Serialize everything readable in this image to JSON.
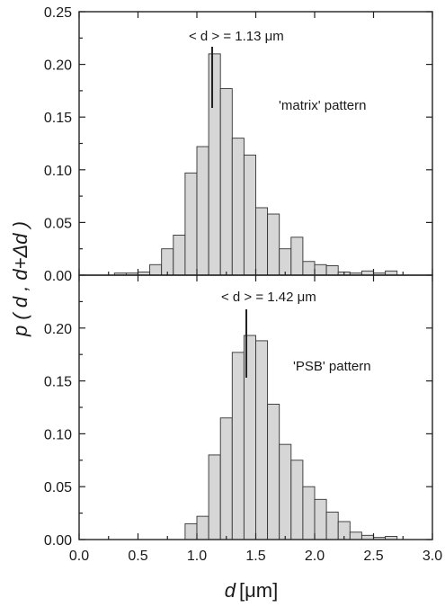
{
  "chart_data": [
    {
      "type": "bar",
      "panel": "top",
      "annotation_mean": "< d > =  1.13 μm",
      "annotation_label": "'matrix' pattern",
      "mean_value": 1.13,
      "bin_width": 0.1,
      "bin_centers": [
        0.35,
        0.45,
        0.55,
        0.65,
        0.75,
        0.85,
        0.95,
        1.05,
        1.15,
        1.25,
        1.35,
        1.45,
        1.55,
        1.65,
        1.75,
        1.85,
        1.95,
        2.05,
        2.15,
        2.25,
        2.35,
        2.45,
        2.55,
        2.65
      ],
      "values": [
        0.002,
        0.002,
        0.003,
        0.01,
        0.025,
        0.038,
        0.097,
        0.122,
        0.21,
        0.177,
        0.13,
        0.114,
        0.064,
        0.058,
        0.025,
        0.036,
        0.013,
        0.01,
        0.009,
        0.003,
        0.002,
        0.004,
        0.002,
        0.004
      ],
      "xlim": [
        0.0,
        3.0
      ],
      "ylim": [
        0.0,
        0.25
      ],
      "yticks": [
        "0.00",
        "0.05",
        "0.10",
        "0.15",
        "0.20",
        "0.25"
      ]
    },
    {
      "type": "bar",
      "panel": "bottom",
      "annotation_mean": "< d > =  1.42 μm",
      "annotation_label": "'PSB' pattern",
      "mean_value": 1.42,
      "bin_width": 0.1,
      "bin_centers": [
        0.95,
        1.05,
        1.15,
        1.25,
        1.35,
        1.45,
        1.55,
        1.65,
        1.75,
        1.85,
        1.95,
        2.05,
        2.15,
        2.25,
        2.35,
        2.45,
        2.55,
        2.65
      ],
      "values": [
        0.015,
        0.022,
        0.08,
        0.115,
        0.177,
        0.193,
        0.188,
        0.128,
        0.09,
        0.075,
        0.05,
        0.038,
        0.026,
        0.017,
        0.007,
        0.004,
        0.002,
        0.003
      ],
      "xlim": [
        0.0,
        3.0
      ],
      "ylim": [
        0.0,
        0.25
      ],
      "yticks": [
        "0.00",
        "0.05",
        "0.10",
        "0.15",
        "0.20"
      ]
    }
  ],
  "axes": {
    "xticks": [
      "0.0",
      "0.5",
      "1.0",
      "1.5",
      "2.0",
      "2.5",
      "3.0"
    ],
    "xlabel_var": "d",
    "xlabel_unit": "[μm]",
    "ylabel": "p ( d ,  d+Δd )"
  },
  "colors": {
    "bar_fill": "#d6d6d6",
    "bar_stroke": "#333333"
  }
}
